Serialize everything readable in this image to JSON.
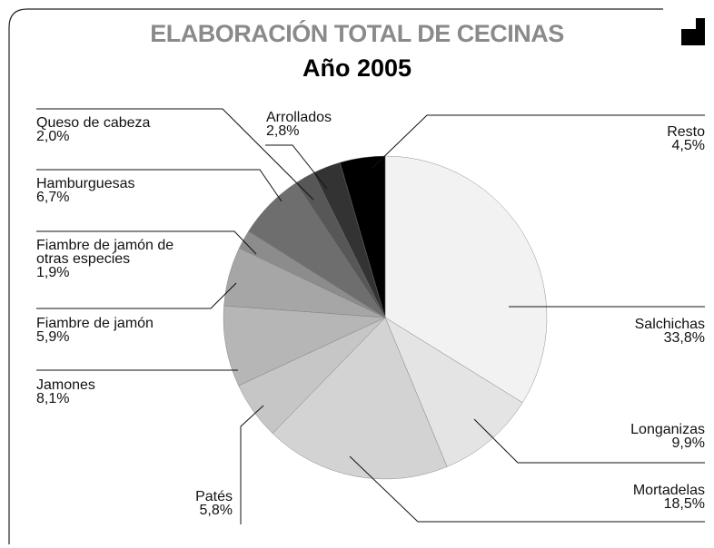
{
  "chart_data": {
    "type": "pie",
    "title": "ELABORACIÓN TOTAL DE CECINAS",
    "subtitle": "Año 2005",
    "categories": [
      "Salchichas",
      "Longanizas",
      "Mortadelas",
      "Patés",
      "Jamones",
      "Fiambre de jamón",
      "Fiambre de jamón de otras especies",
      "Hamburguesas",
      "Queso de cabeza",
      "Arrollados",
      "Resto"
    ],
    "values": [
      33.8,
      9.9,
      18.5,
      5.8,
      8.1,
      5.9,
      1.9,
      6.7,
      2.0,
      2.8,
      4.5
    ],
    "value_labels": [
      "33,8%",
      "9,9%",
      "18,5%",
      "5,8%",
      "8,1%",
      "5,9%",
      "1,9%",
      "6,7%",
      "2,0%",
      "2,8%",
      "4,5%"
    ],
    "colors": [
      "#f2f2f2",
      "#e4e4e4",
      "#d3d3d3",
      "#c6c6c6",
      "#b6b6b6",
      "#a6a6a6",
      "#8c8c8c",
      "#6e6e6e",
      "#575757",
      "#333333",
      "#000000"
    ]
  }
}
